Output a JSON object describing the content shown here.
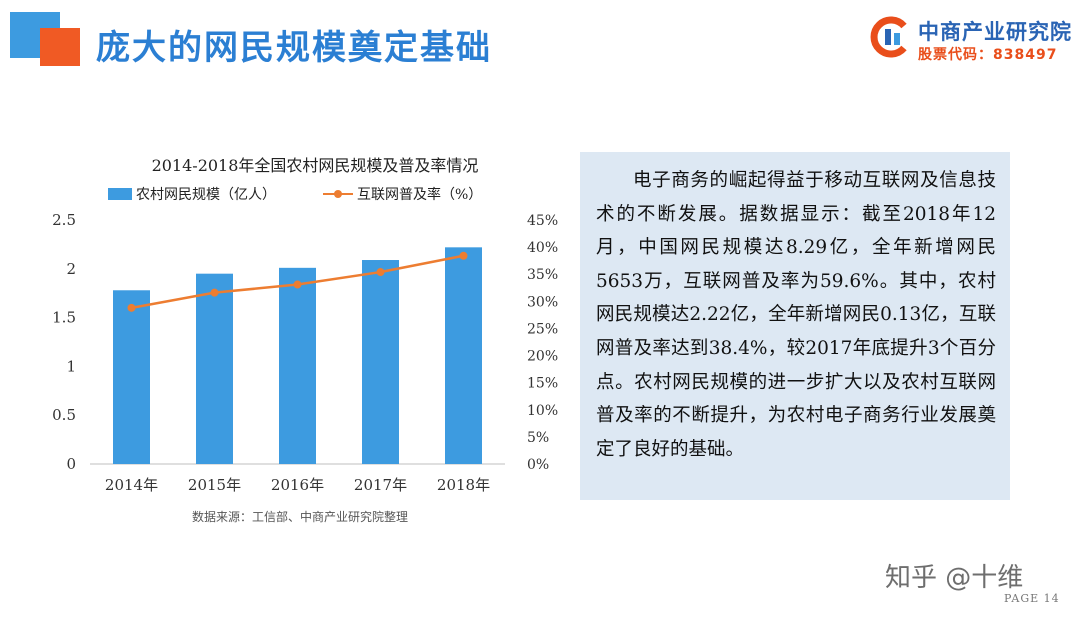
{
  "slide": {
    "title": "庞大的网民规模奠定基础",
    "logo": {
      "name": "中商产业研究院",
      "stock_code": "股票代码：838497"
    },
    "source_note": "数据来源：工信部、中商产业研究院整理",
    "body_text": "电子商务的崛起得益于移动互联网及信息技术的不断发展。据数据显示：截至2018年12月，中国网民规模达8.29亿，全年新增网民5653万，互联网普及率为59.6%。其中，农村网民规模达2.22亿，全年新增网民0.13亿，互联网普及率达到38.4%，较2017年底提升3个百分点。农村网民规模的进一步扩大以及农村互联网普及率的不断提升，为农村电子商务行业发展奠定了良好的基础。",
    "footer_mark": "知乎 @十维",
    "page_label": "PAGE 14"
  },
  "colors": {
    "title": "#2b7fd3",
    "bar": "#3d9be0",
    "line": "#ed7d31",
    "accent_orange": "#f05a24",
    "textbox_bg": "#dde8f3"
  },
  "chart_data": {
    "type": "bar",
    "title": "2014-2018年全国农村网民规模及普及率情况",
    "categories": [
      "2014年",
      "2015年",
      "2016年",
      "2017年",
      "2018年"
    ],
    "series": [
      {
        "name": "农村网民规模（亿人）",
        "type": "bar",
        "axis": "left",
        "values": [
          1.78,
          1.95,
          2.01,
          2.09,
          2.22
        ]
      },
      {
        "name": "互联网普及率（%）",
        "type": "line",
        "axis": "right",
        "values": [
          28.8,
          31.6,
          33.1,
          35.4,
          38.4
        ]
      }
    ],
    "y_left": {
      "range": [
        0,
        2.5
      ],
      "ticks": [
        "0",
        "0.5",
        "1",
        "1.5",
        "2",
        "2.5"
      ]
    },
    "y_right": {
      "range": [
        0,
        45
      ],
      "ticks": [
        "0%",
        "5%",
        "10%",
        "15%",
        "20%",
        "25%",
        "30%",
        "35%",
        "40%",
        "45%"
      ]
    },
    "grid": false,
    "legend_position": "top"
  }
}
